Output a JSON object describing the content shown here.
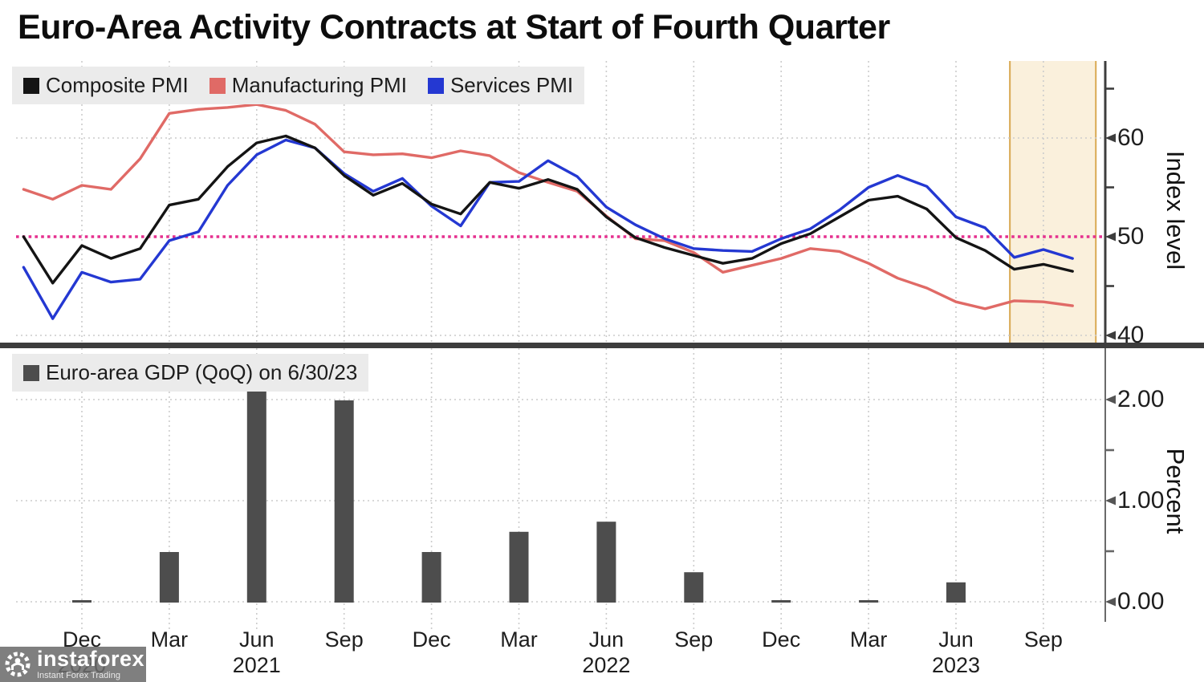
{
  "title": "Euro-Area Activity Contracts at Start of Fourth Quarter",
  "pmi_legend": [
    {
      "label": "Composite PMI",
      "color": "#141414"
    },
    {
      "label": "Manufacturing PMI",
      "color": "#e06a66"
    },
    {
      "label": "Services PMI",
      "color": "#2438d2"
    }
  ],
  "gdp_legend": {
    "label": "Euro-area GDP (QoQ) on 6/30/23",
    "color": "#4d4d4d"
  },
  "axes": {
    "top_right_label": "Index level",
    "bottom_right_label": "Percent",
    "top_ticks": [
      "60",
      "50",
      "40"
    ],
    "bottom_ticks": [
      "2.00",
      "1.00",
      "0.00"
    ]
  },
  "x_axis": {
    "ticks": [
      {
        "month": "Dec",
        "year": "2020"
      },
      {
        "month": "Mar"
      },
      {
        "month": "Jun",
        "year": "2021"
      },
      {
        "month": "Sep"
      },
      {
        "month": "Dec"
      },
      {
        "month": "Mar"
      },
      {
        "month": "Jun",
        "year": "2022"
      },
      {
        "month": "Sep"
      },
      {
        "month": "Dec"
      },
      {
        "month": "Mar"
      },
      {
        "month": "Jun",
        "year": "2023"
      },
      {
        "month": "Sep"
      }
    ]
  },
  "colors": {
    "grid": "#cccccc",
    "reference_pink": "#e5318f",
    "band_fill": "#faf0dc",
    "band_border": "#d9a952",
    "divider": "#3d3d3d",
    "axis_top": "#3d3d3d",
    "axis_bottom": "#6a6a6a",
    "legend_bg": "#ebebeb"
  },
  "watermark": {
    "name": "instaforex",
    "tagline": "Instant Forex Trading"
  },
  "chart_data": [
    {
      "type": "line",
      "panel": "top",
      "x_start": "2020-10",
      "x_step_months": 1,
      "n_points": 37,
      "ylabel": "Index level",
      "ylim": [
        37.5,
        67.5
      ],
      "yticks": [
        60,
        50,
        40
      ],
      "minor_yticks": [
        65,
        55,
        45
      ],
      "reference_line": 50,
      "highlight_region": {
        "from_month_index": 33.85,
        "to_month_index": 36.8
      },
      "grid": true,
      "legend_position": "top-left",
      "series": [
        {
          "name": "Composite PMI",
          "color": "#141414",
          "values": [
            50.0,
            45.3,
            49.1,
            47.8,
            48.8,
            53.2,
            53.8,
            57.1,
            59.5,
            60.2,
            59.0,
            56.2,
            54.2,
            55.4,
            53.3,
            52.3,
            55.5,
            54.9,
            55.8,
            54.8,
            52.0,
            49.9,
            48.9,
            48.1,
            47.3,
            47.8,
            49.3,
            50.3,
            52.0,
            53.7,
            54.1,
            52.8,
            49.9,
            48.6,
            46.7,
            47.2,
            46.5
          ]
        },
        {
          "name": "Manufacturing PMI",
          "color": "#e06a66",
          "values": [
            54.8,
            53.8,
            55.2,
            54.8,
            57.9,
            62.5,
            62.9,
            63.1,
            63.4,
            62.8,
            61.4,
            58.6,
            58.3,
            58.4,
            58.0,
            58.7,
            58.2,
            56.5,
            55.5,
            54.6,
            52.1,
            49.8,
            49.6,
            48.4,
            46.4,
            47.1,
            47.8,
            48.8,
            48.5,
            47.3,
            45.8,
            44.8,
            43.4,
            42.7,
            43.5,
            43.4,
            43.0
          ]
        },
        {
          "name": "Services PMI",
          "color": "#2438d2",
          "values": [
            46.9,
            41.7,
            46.4,
            45.4,
            45.7,
            49.6,
            50.5,
            55.2,
            58.3,
            59.8,
            59.0,
            56.4,
            54.6,
            55.9,
            53.1,
            51.1,
            55.5,
            55.6,
            57.7,
            56.1,
            53.0,
            51.2,
            49.8,
            48.8,
            48.6,
            48.5,
            49.8,
            50.8,
            52.7,
            55.0,
            56.2,
            55.1,
            52.0,
            50.9,
            47.9,
            48.7,
            47.8
          ]
        }
      ]
    },
    {
      "type": "bar",
      "panel": "bottom",
      "legend": "Euro-area GDP (QoQ) on 6/30/23",
      "ylabel": "Percent",
      "ylim": [
        -0.15,
        2.5
      ],
      "yticks": [
        2.0,
        1.0,
        0.0
      ],
      "minor_yticks": [
        1.5,
        0.5
      ],
      "bar_color": "#4d4d4d",
      "categories": [
        "2020-Q4",
        "2021-Q1",
        "2021-Q2",
        "2021-Q3",
        "2021-Q4",
        "2022-Q1",
        "2022-Q2",
        "2022-Q3",
        "2022-Q4",
        "2023-Q1",
        "2023-Q2"
      ],
      "values": [
        0.0,
        0.5,
        2.1,
        2.0,
        0.5,
        0.7,
        0.8,
        0.3,
        0.0,
        0.0,
        0.2
      ]
    }
  ]
}
